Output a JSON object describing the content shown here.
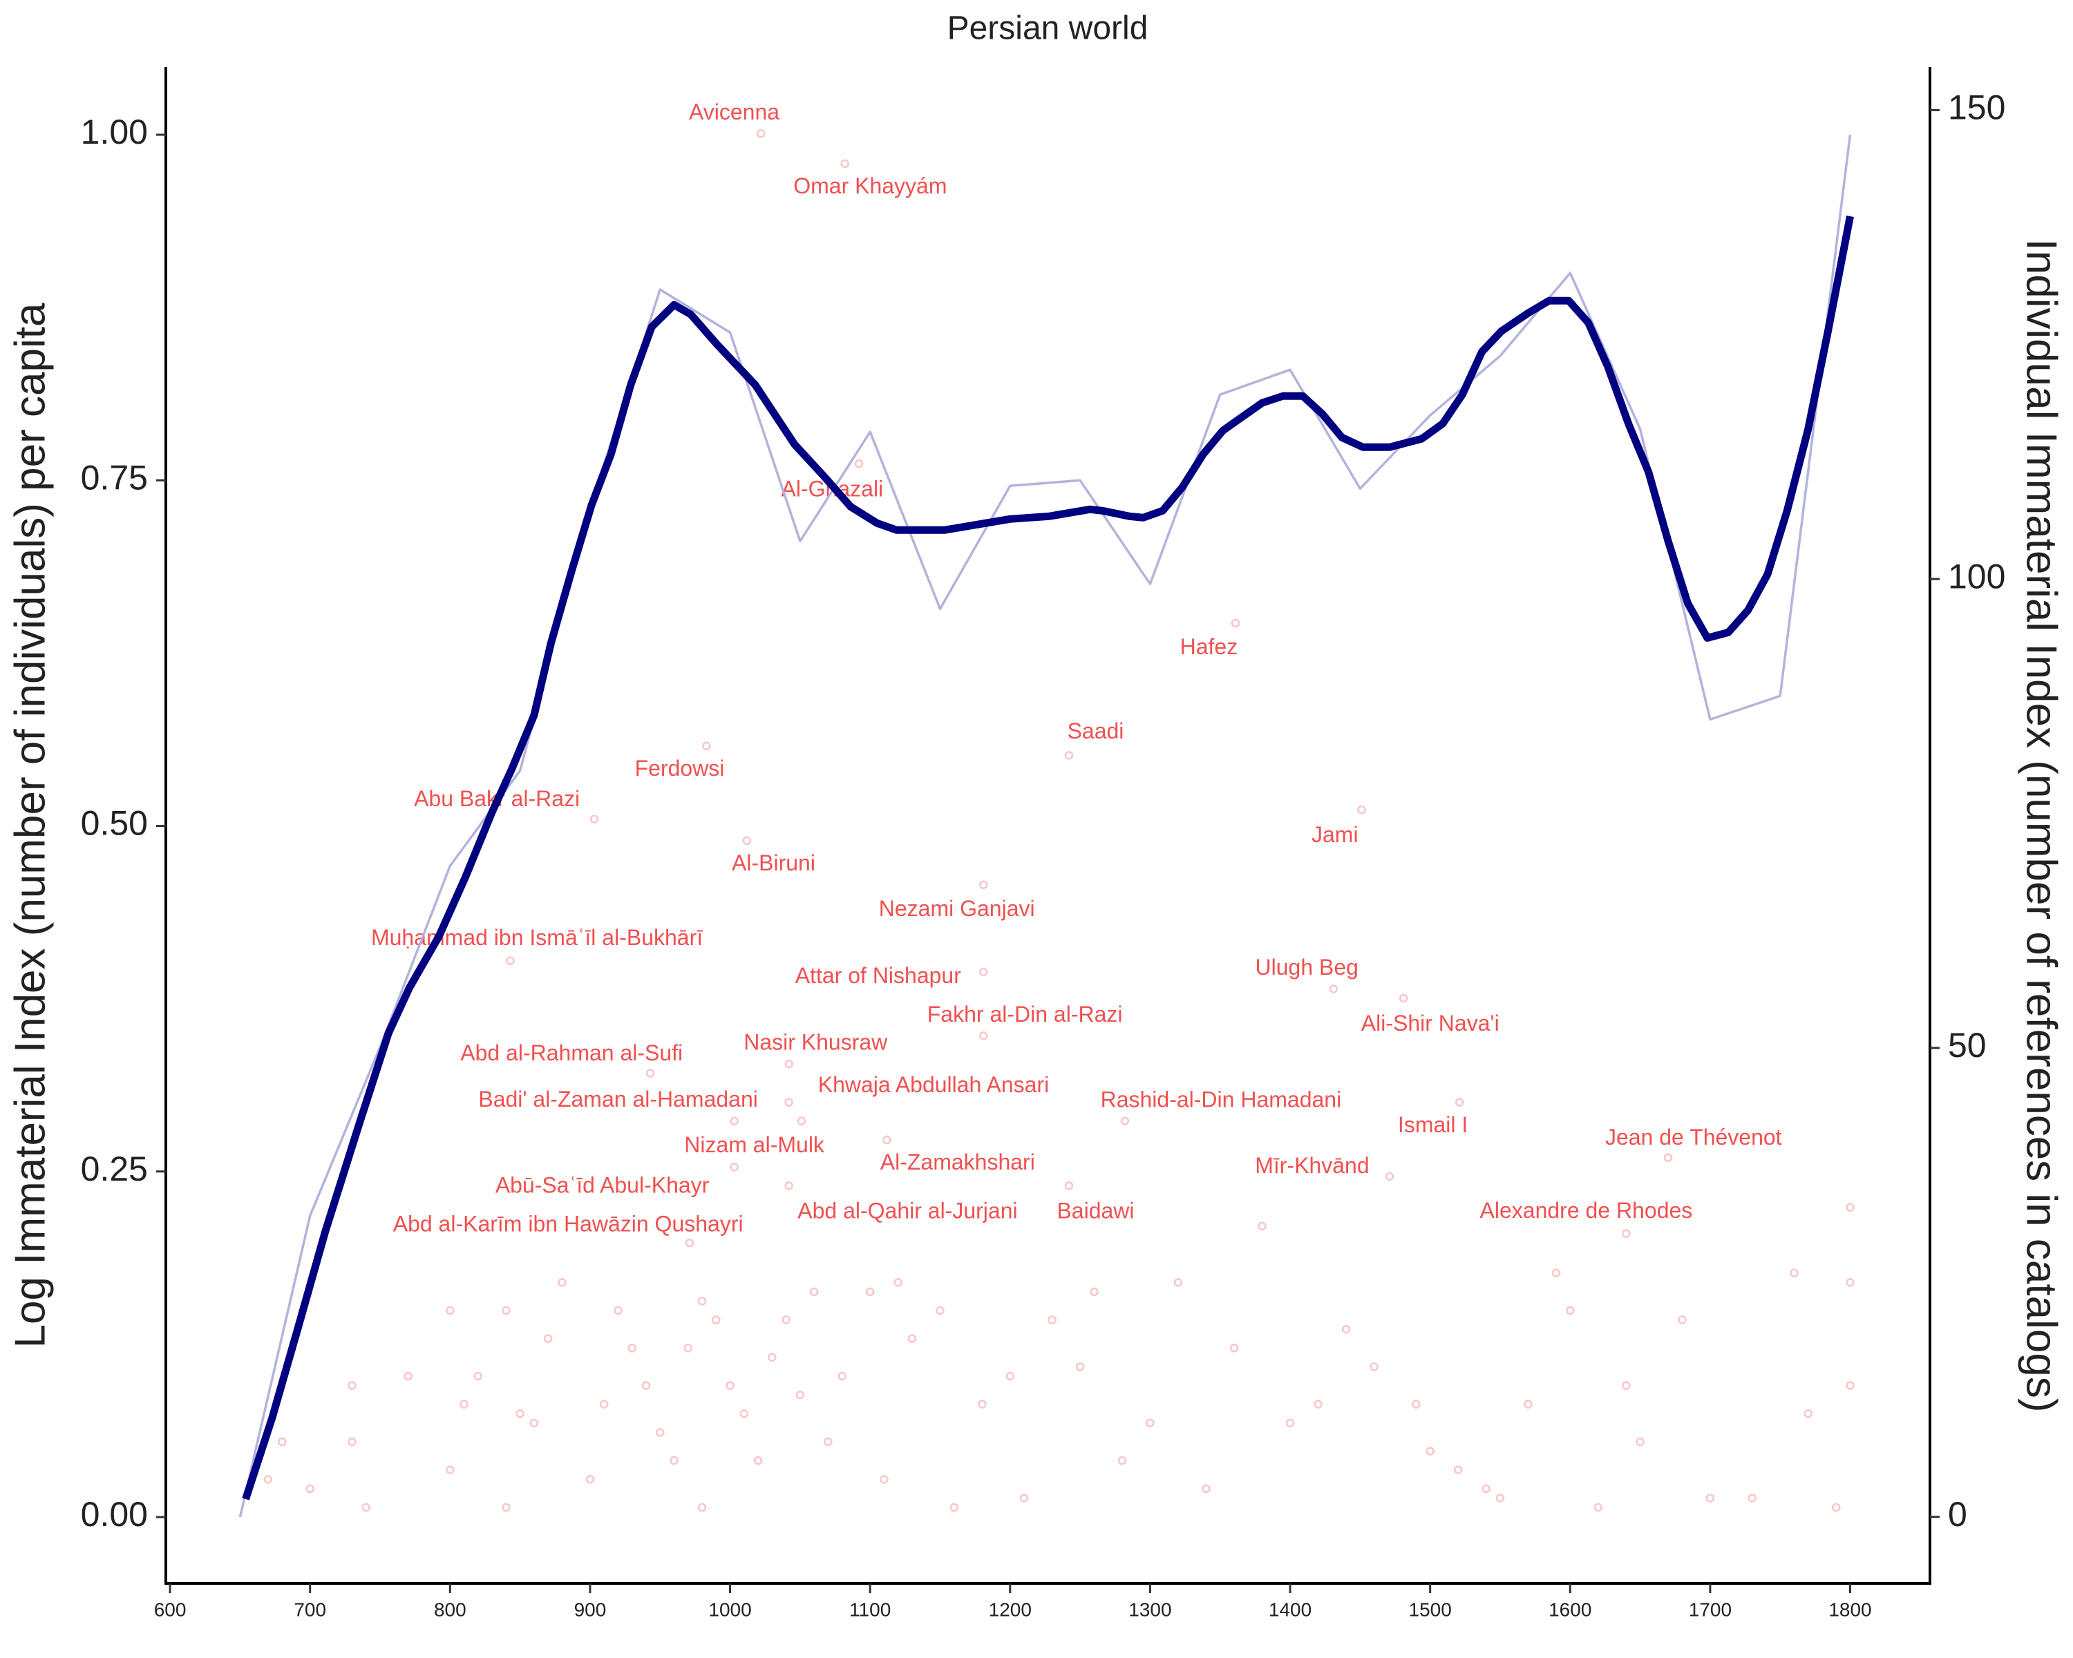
{
  "chart_data": {
    "type": "line",
    "title": "Persian world",
    "ylabel": "Log Immaterial Index (number of individuals) per capita",
    "y2label": "Individual Immaterial Index (number of references in catalogs)",
    "xlim": [
      597,
      1857
    ],
    "xticks": [
      600,
      700,
      800,
      900,
      1000,
      1100,
      1200,
      1300,
      1400,
      1500,
      1600,
      1700,
      1800
    ],
    "ylim": [
      -0.048,
      1.049
    ],
    "yticks": [
      {
        "value": 0,
        "label": "0.00"
      },
      {
        "value": 0.25,
        "label": "0.25"
      },
      {
        "value": 0.5,
        "label": "0.50"
      },
      {
        "value": 0.75,
        "label": "0.75"
      },
      {
        "value": 1,
        "label": "1.00"
      }
    ],
    "y2lim": [
      -7.1,
      154.6
    ],
    "y2ticks": [
      0,
      50,
      100,
      150
    ],
    "series": [
      {
        "type": "line",
        "color": "#b3b3dc",
        "x": [
          650,
          700,
          750,
          800,
          850,
          900,
          950,
          1000,
          1050,
          1100,
          1150,
          1200,
          1250,
          1300,
          1350,
          1400,
          1450,
          1500,
          1550,
          1600,
          1650,
          1700,
          1750,
          1800
        ],
        "values": [
          0.0,
          0.218,
          0.34,
          0.471,
          0.54,
          0.73,
          0.888,
          0.857,
          0.706,
          0.785,
          0.657,
          0.746,
          0.75,
          0.675,
          0.812,
          0.83,
          0.744,
          0.797,
          0.84,
          0.9,
          0.787,
          0.577,
          0.594,
          1.0
        ]
      },
      {
        "type": "line",
        "color": "#000080",
        "x": [
          654,
          673,
          692,
          711,
          735,
          756,
          771,
          792,
          811,
          830,
          844,
          860,
          872,
          887,
          901,
          915,
          929,
          944,
          960,
          972,
          991,
          1018,
          1046,
          1067,
          1086,
          1105,
          1119,
          1153,
          1200,
          1228,
          1257,
          1266,
          1285,
          1295,
          1309,
          1323,
          1338,
          1352,
          1380,
          1395,
          1409,
          1423,
          1437,
          1452,
          1471,
          1494,
          1509,
          1523,
          1537,
          1551,
          1570,
          1585,
          1599,
          1613,
          1627,
          1642,
          1656,
          1670,
          1684,
          1698,
          1713,
          1727,
          1741,
          1755,
          1770,
          1784,
          1800
        ],
        "values": [
          0.013,
          0.072,
          0.139,
          0.207,
          0.284,
          0.35,
          0.383,
          0.42,
          0.463,
          0.51,
          0.541,
          0.58,
          0.632,
          0.685,
          0.732,
          0.769,
          0.819,
          0.861,
          0.877,
          0.87,
          0.848,
          0.819,
          0.776,
          0.753,
          0.731,
          0.719,
          0.714,
          0.714,
          0.722,
          0.724,
          0.729,
          0.728,
          0.724,
          0.723,
          0.728,
          0.745,
          0.769,
          0.786,
          0.806,
          0.811,
          0.811,
          0.798,
          0.781,
          0.774,
          0.774,
          0.78,
          0.791,
          0.812,
          0.843,
          0.858,
          0.871,
          0.88,
          0.88,
          0.864,
          0.832,
          0.79,
          0.756,
          0.706,
          0.661,
          0.636,
          0.64,
          0.656,
          0.682,
          0.728,
          0.787,
          0.857,
          0.941
        ]
      },
      {
        "type": "scatter",
        "color": "#f08080",
        "label_color": "#f05050",
        "axis": "y2",
        "x": [
          1022,
          1082,
          1092,
          1361,
          1242,
          983,
          903,
          1012,
          1451,
          1181,
          843,
          1181,
          1431,
          1181,
          1481,
          943,
          1042,
          1042,
          1051,
          1282,
          1521,
          1003,
          1112,
          1670,
          1471,
          1003,
          1042,
          1242,
          971,
          1640,
          700,
          670,
          680,
          730,
          730,
          740,
          770,
          800,
          800,
          810,
          820,
          840,
          840,
          850,
          860,
          870,
          880,
          900,
          910,
          920,
          930,
          940,
          950,
          960,
          970,
          980,
          980,
          990,
          1000,
          1010,
          1020,
          1030,
          1040,
          1050,
          1060,
          1070,
          1080,
          1100,
          1110,
          1120,
          1130,
          1150,
          1160,
          1180,
          1200,
          1210,
          1230,
          1250,
          1260,
          1280,
          1300,
          1320,
          1340,
          1360,
          1380,
          1400,
          1420,
          1440,
          1460,
          1490,
          1500,
          1520,
          1540,
          1550,
          1570,
          1590,
          1600,
          1620,
          1640,
          1650,
          1680,
          1700,
          1730,
          1760,
          1770,
          1790,
          1800,
          1800,
          1800
        ],
        "values": [
          147.5,
          144.3,
          112.3,
          95.3,
          81.2,
          82.2,
          74.4,
          72.1,
          75.4,
          67.4,
          59.3,
          58.1,
          56.3,
          51.3,
          55.3,
          47.3,
          48.3,
          44.2,
          42.2,
          42.2,
          44.2,
          42.2,
          40.2,
          38.3,
          36.3,
          37.3,
          35.3,
          35.3,
          29.2,
          30.2,
          3,
          4,
          8,
          14,
          8,
          1,
          15,
          22,
          5,
          12,
          15,
          22,
          1,
          11,
          10,
          19,
          25,
          4,
          12,
          22,
          18,
          14,
          9,
          6,
          18,
          23,
          1,
          21,
          14,
          11,
          6,
          17,
          21,
          13,
          24,
          8,
          15,
          24,
          4,
          25,
          19,
          22,
          1,
          12,
          15,
          2,
          21,
          16,
          24,
          6,
          10,
          25,
          3,
          18,
          31,
          10,
          12,
          20,
          16,
          12,
          7,
          5,
          3,
          2,
          12,
          26,
          22,
          1,
          14,
          8,
          21,
          2,
          2,
          26,
          11,
          1,
          14,
          33,
          25
        ],
        "labels": [
          "Avicenna",
          "Omar Khayyám",
          "Al-Ghazali",
          "Hafez",
          "Saadi",
          "Ferdowsi",
          "Abu Bakr al-Razi",
          "Al-Biruni",
          "Jami",
          "Nezami Ganjavi",
          "Muḥammad ibn Ismāʿīl al-Bukhārī",
          "Attar of Nishapur",
          "Ulugh Beg",
          "Fakhr al-Din al-Razi",
          "Ali-Shir Nava'i",
          "Abd al-Rahman al-Sufi",
          "Nasir Khusraw",
          "Badi' al-Zaman al-Hamadani",
          "Khwaja Abdullah Ansari",
          "Rashid-al-Din Hamadani",
          "Ismail I",
          "Nizam al-Mulk",
          "Al-Zamakhshari",
          "Jean de Thévenot",
          "Mīr-Khvānd",
          "Abū-Saʿīd Abul-Khayr",
          "Abd al-Qahir al-Jurjani",
          "Baidawi",
          "Abd al-Karīm ibn Hawāzin Qushayri",
          "Alexandre de Rhodes",
          null,
          null,
          null,
          null,
          null,
          null,
          null,
          null,
          null,
          null,
          null,
          null,
          null,
          null,
          null,
          null,
          null,
          null,
          null,
          null,
          null,
          null,
          null,
          null,
          null,
          null,
          null,
          null,
          null,
          null,
          null,
          null,
          null,
          null,
          null,
          null,
          null,
          null,
          null,
          null,
          null,
          null,
          null,
          null,
          null,
          null,
          null,
          null,
          null,
          null,
          null,
          null,
          null,
          null,
          null,
          null,
          null,
          null,
          null,
          null,
          null,
          null,
          null,
          null,
          null,
          null,
          null,
          null,
          null,
          null,
          null,
          null,
          null,
          null,
          null,
          null,
          null,
          null,
          null
        ]
      }
    ]
  }
}
